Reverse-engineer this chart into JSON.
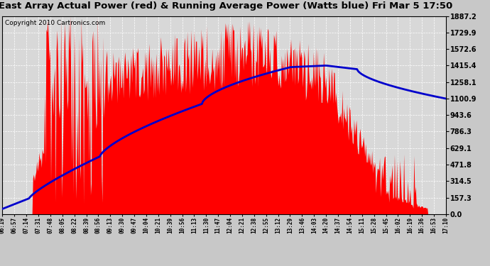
{
  "title": "East Array Actual Power (red) & Running Average Power (Watts blue) Fri Mar 5 17:50",
  "copyright": "Copyright 2010 Cartronics.com",
  "yticks": [
    0.0,
    157.3,
    314.5,
    471.8,
    629.1,
    786.3,
    943.6,
    1100.9,
    1258.1,
    1415.4,
    1572.6,
    1729.9,
    1887.2
  ],
  "ymax": 1887.2,
  "xtick_labels": [
    "06:19",
    "06:57",
    "07:14",
    "07:31",
    "07:48",
    "08:05",
    "08:22",
    "08:39",
    "08:56",
    "09:13",
    "09:30",
    "09:47",
    "10:04",
    "10:21",
    "10:39",
    "10:56",
    "11:13",
    "11:30",
    "11:47",
    "12:04",
    "12:21",
    "12:38",
    "12:55",
    "13:12",
    "13:29",
    "13:46",
    "14:03",
    "14:20",
    "14:37",
    "14:54",
    "15:11",
    "15:28",
    "15:45",
    "16:02",
    "16:19",
    "16:36",
    "16:53",
    "17:10"
  ],
  "plot_bg_color": "#d8d8d8",
  "grid_color": "#ffffff",
  "actual_color": "#ff0000",
  "avg_color": "#0000cc",
  "title_fontsize": 9.5,
  "copyright_fontsize": 6.5
}
